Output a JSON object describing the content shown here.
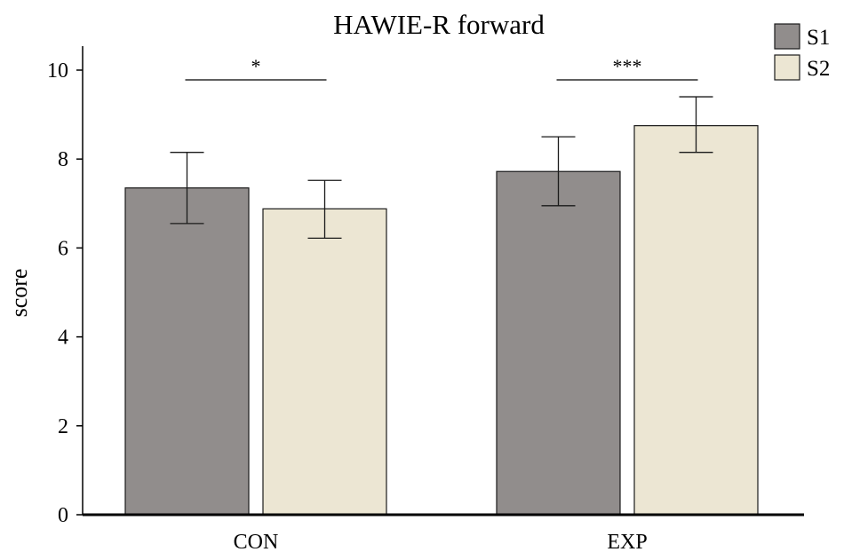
{
  "chart_data": {
    "type": "bar",
    "title": "HAWIE-R forward",
    "xlabel": "",
    "ylabel": "score",
    "categories": [
      "CON",
      "EXP"
    ],
    "ylim": [
      0,
      10.4
    ],
    "yticks": [
      0,
      2,
      4,
      6,
      8,
      10
    ],
    "series": [
      {
        "name": "S1",
        "color": "#918d8c",
        "values": [
          7.35,
          7.72
        ],
        "err_low": [
          6.55,
          6.95
        ],
        "err_high": [
          8.15,
          8.5
        ]
      },
      {
        "name": "S2",
        "color": "#ece6d3",
        "values": [
          6.88,
          8.75
        ],
        "err_low": [
          6.22,
          8.15
        ],
        "err_high": [
          7.52,
          9.4
        ]
      }
    ],
    "significance": [
      {
        "category": "CON",
        "label": "*",
        "y": 9.78
      },
      {
        "category": "EXP",
        "label": "***",
        "y": 9.78
      }
    ],
    "legend_position": "top-right",
    "grid": false
  }
}
